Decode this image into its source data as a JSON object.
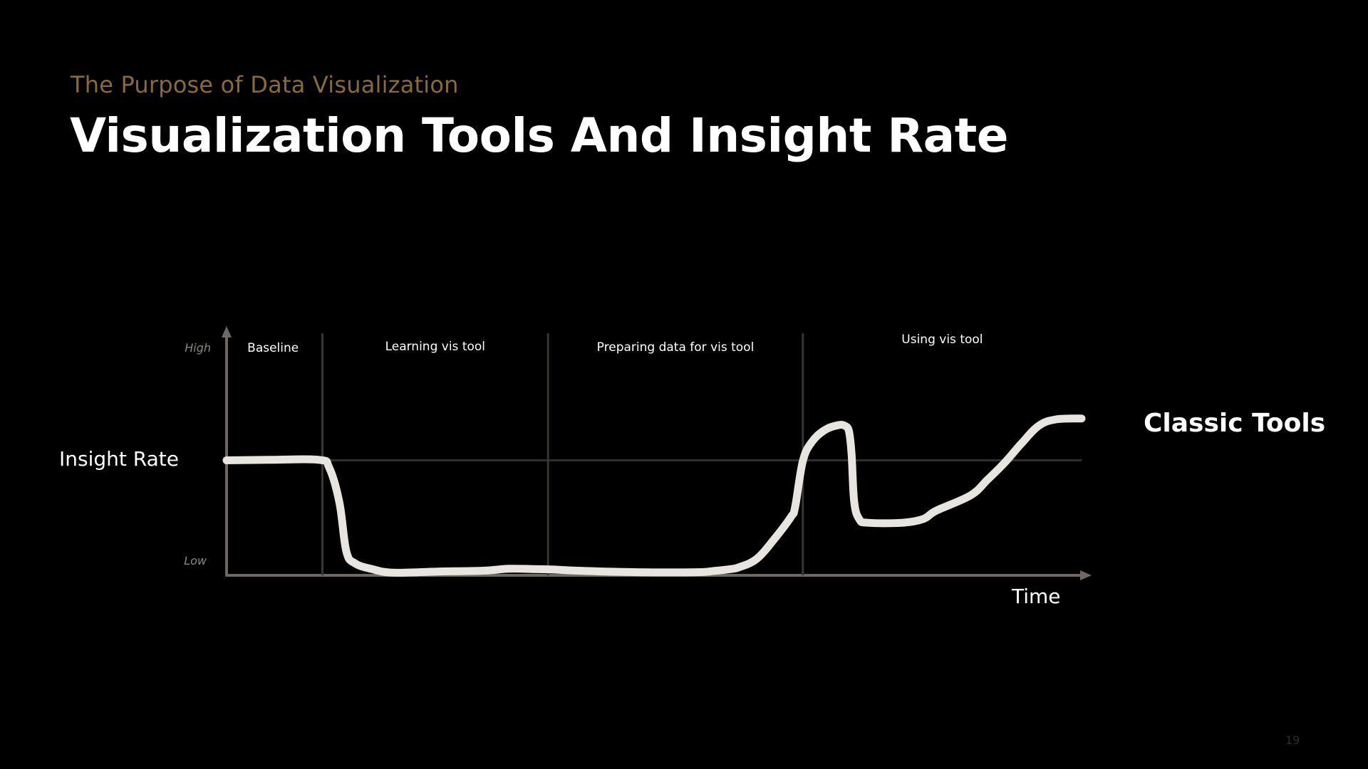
{
  "slide": {
    "kicker": "The Purpose of Data Visualization",
    "title": "Visualization Tools And Insight Rate",
    "page_number": "19"
  },
  "colors": {
    "background": "#000000",
    "kicker": "#8a6a3a",
    "title": "#ffffff",
    "axis": "#6e6864",
    "divider": "#3a3733",
    "baseline_ref": "#2f2f2d",
    "curve": "#e8e4df",
    "page_number": "#2d2d2d"
  },
  "chart_data": {
    "type": "line",
    "title": "",
    "xlabel": "Time",
    "ylabel": "Insight Rate",
    "y_tick_labels": {
      "high": "High",
      "low": "Low"
    },
    "xlim": [
      0,
      100
    ],
    "ylim": [
      0,
      100
    ],
    "grid": false,
    "phases": [
      {
        "label": "Baseline",
        "start": 0,
        "end": 11.2
      },
      {
        "label": "Learning vis tool",
        "start": 11.2,
        "end": 37.6
      },
      {
        "label": "Preparing data for vis tool",
        "start": 37.6,
        "end": 67.4
      },
      {
        "label": "Using vis tool",
        "start": 67.4,
        "end": 100
      }
    ],
    "baseline_level": 47.5,
    "series": [
      {
        "name": "Classic Tools",
        "x": [
          0,
          5,
          10.8,
          12.0,
          13.2,
          14.0,
          15.0,
          17.0,
          19.5,
          25,
          30,
          33,
          36,
          38,
          42,
          48,
          55,
          57,
          59,
          60,
          62,
          64,
          66.0,
          66.5,
          67.4,
          68.5,
          70.0,
          71.5,
          72.3,
          72.8,
          73.1,
          73.4,
          74.0,
          75.0,
          79.0,
          81.5,
          83.0,
          87.0,
          89.0,
          91.0,
          93.0,
          95.0,
          97.0,
          100.0
        ],
        "y": [
          47.5,
          47.7,
          47.7,
          44.5,
          30,
          10,
          5,
          2.6,
          1.1,
          1.6,
          1.9,
          2.7,
          2.6,
          2.4,
          1.8,
          1.3,
          1.3,
          1.8,
          2.6,
          3.4,
          6.8,
          14.7,
          24.1,
          28.3,
          47.2,
          55.3,
          60.1,
          62.0,
          61.8,
          59.4,
          50.0,
          30.6,
          23.2,
          21.7,
          21.7,
          23.3,
          26.7,
          33.0,
          39.5,
          46.5,
          54.6,
          61.8,
          64.4,
          64.8
        ]
      }
    ]
  }
}
